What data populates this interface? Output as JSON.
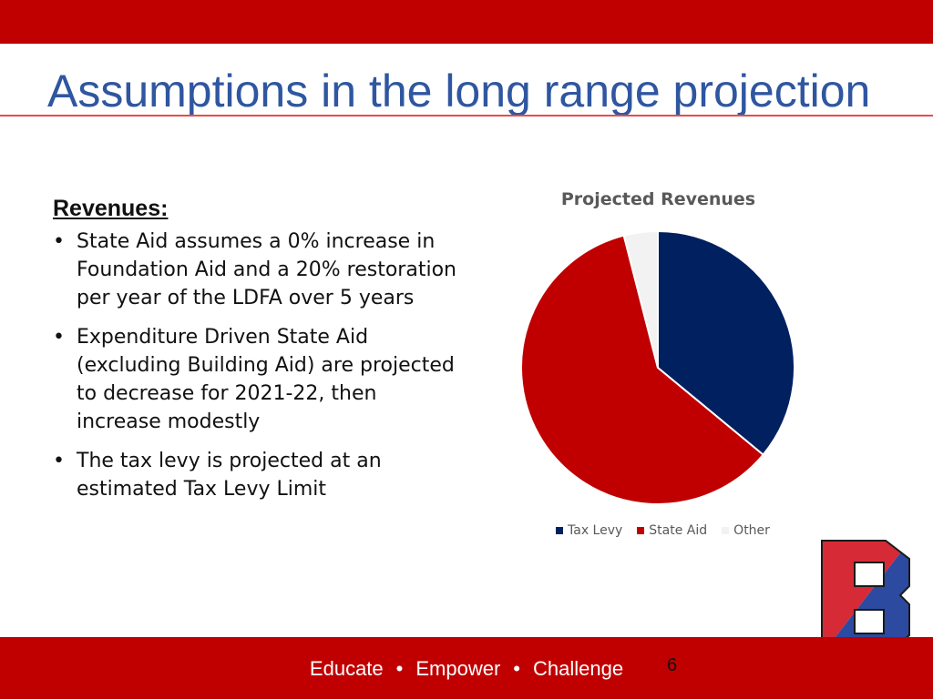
{
  "slide": {
    "title": "Assumptions in the long range projection",
    "page_number": "6"
  },
  "revenues": {
    "heading": "Revenues:",
    "bullets": [
      "State Aid assumes a 0% increase in Foundation Aid and a 20% restoration per year of the LDFA over 5 years",
      "Expenditure Driven State Aid (excluding Building Aid) are projected to decrease for 2021-22, then increase modestly",
      "The tax levy is projected at an estimated Tax Levy Limit"
    ],
    "bullet_glyph": "•"
  },
  "footer": {
    "items": [
      "Educate",
      "Empower",
      "Challenge"
    ],
    "separator": "•"
  },
  "logo": {
    "letter": "B",
    "colors": [
      "#d62a36",
      "#2b4aa0"
    ]
  },
  "colors": {
    "band": "#c00000",
    "title": "#2f56a0",
    "tax_levy": "#002060",
    "state_aid": "#c00000",
    "other": "#f2f2f2"
  },
  "chart_data": {
    "type": "pie",
    "title": "Projected Revenues",
    "categories": [
      "Tax Levy",
      "State Aid",
      "Other"
    ],
    "values": [
      36,
      60,
      4
    ],
    "colors": [
      "#002060",
      "#c00000",
      "#f2f2f2"
    ],
    "legend_position": "bottom"
  }
}
